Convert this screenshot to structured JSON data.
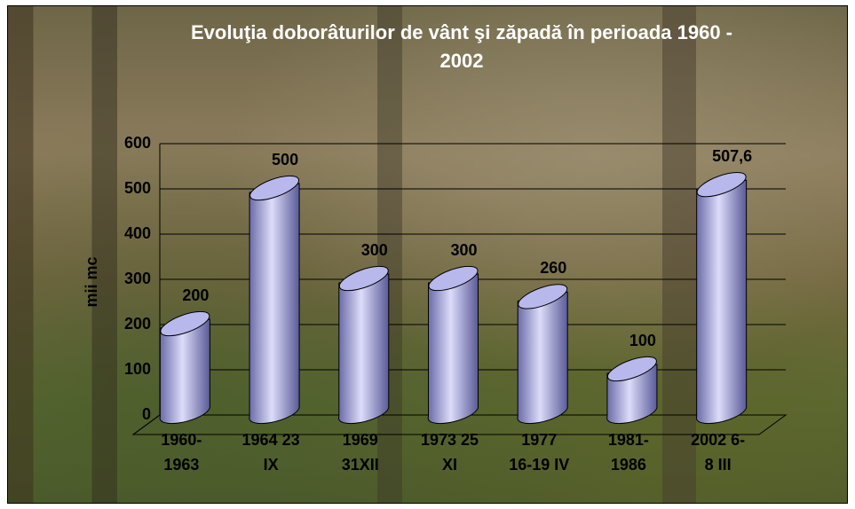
{
  "chart_data": {
    "type": "bar",
    "title": [
      "Evoluţia doborâturilor de vânt şi zăpadă în perioada 1960 -",
      "2002"
    ],
    "y_label": "mii mc",
    "categories": [
      [
        "1960-",
        "1963"
      ],
      [
        "1964 23",
        "IX"
      ],
      [
        "1969",
        "31XII"
      ],
      [
        "1973 25",
        "XI"
      ],
      [
        "1977",
        "16-19 IV"
      ],
      [
        "1981-",
        "1986"
      ],
      [
        "2002 6-",
        "8 III"
      ]
    ],
    "values": [
      200,
      500,
      300,
      300,
      260,
      100,
      507.6
    ],
    "value_labels": [
      "200",
      "500",
      "300",
      "300",
      "260",
      "100",
      "507,6"
    ],
    "color": "#b8b8ec",
    "ylim": [
      0,
      600
    ],
    "yticks": [
      0,
      100,
      200,
      300,
      400,
      500,
      600
    ],
    "grid": true
  }
}
